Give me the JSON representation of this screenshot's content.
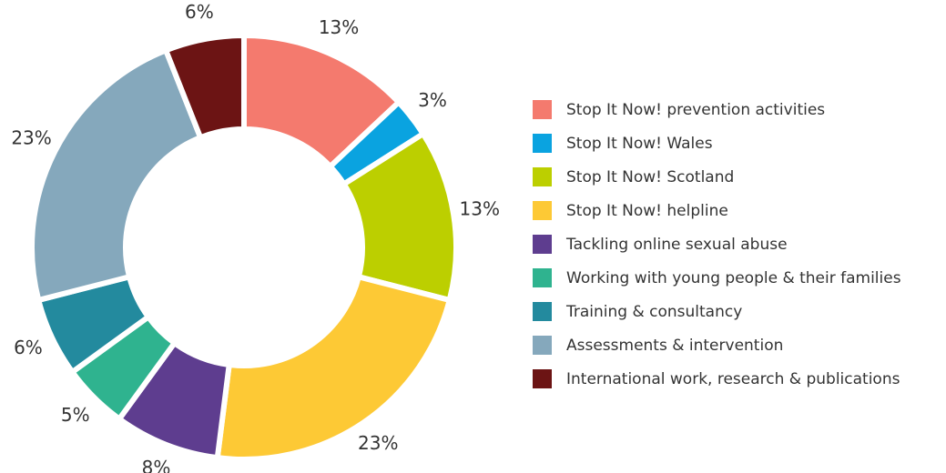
{
  "chart_data": {
    "type": "pie",
    "donut": true,
    "categories": [
      "Stop It Now! prevention activities",
      "Stop It Now! Wales",
      "Stop It Now! Scotland",
      "Stop It Now! helpline",
      "Tackling online sexual abuse",
      "Working with young people & their families",
      "Training & consultancy",
      "Assessments & intervention",
      "International work, research & publications"
    ],
    "values": [
      13,
      3,
      13,
      23,
      8,
      5,
      6,
      23,
      6
    ],
    "value_labels": [
      "13%",
      "3%",
      "13%",
      "23%",
      "8%",
      "5%",
      "6%",
      "23%",
      "6%"
    ],
    "colors": [
      "#f47a6e",
      "#0aa3e0",
      "#bccf00",
      "#fdc935",
      "#5e3d8f",
      "#2fb38f",
      "#238a9e",
      "#85a8bc",
      "#6c1414"
    ],
    "legend": "right"
  }
}
